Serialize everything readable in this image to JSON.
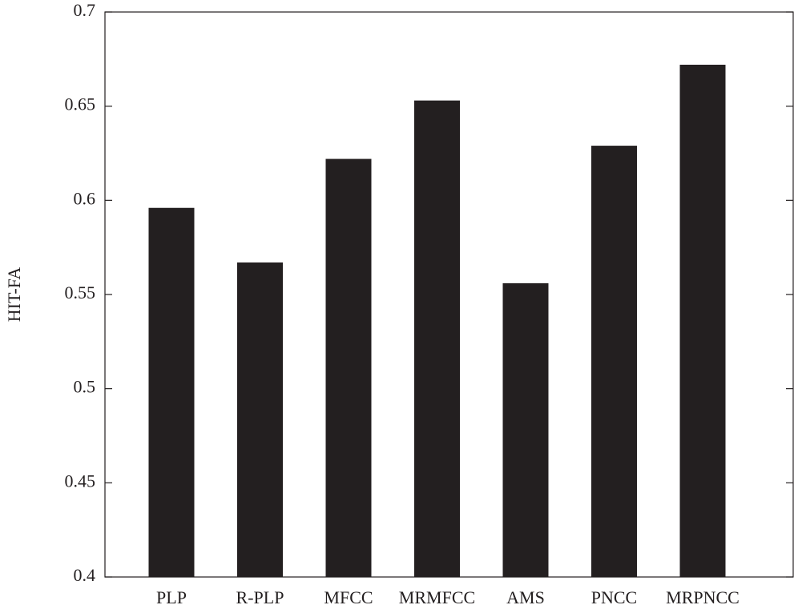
{
  "chart_data": {
    "type": "bar",
    "y_label": "HIT-FA",
    "categories": [
      "PLP",
      "R-PLP",
      "MFCC",
      "MRMFCC",
      "AMS",
      "PNCC",
      "MRPNCC"
    ],
    "values": [
      0.596,
      0.567,
      0.622,
      0.653,
      0.556,
      0.629,
      0.672
    ],
    "color": "#231f20",
    "ylim": [
      0.4,
      0.7
    ],
    "yticks": [
      0.4,
      0.45,
      0.5,
      0.55,
      0.6,
      0.65,
      0.7
    ],
    "grid": false
  }
}
